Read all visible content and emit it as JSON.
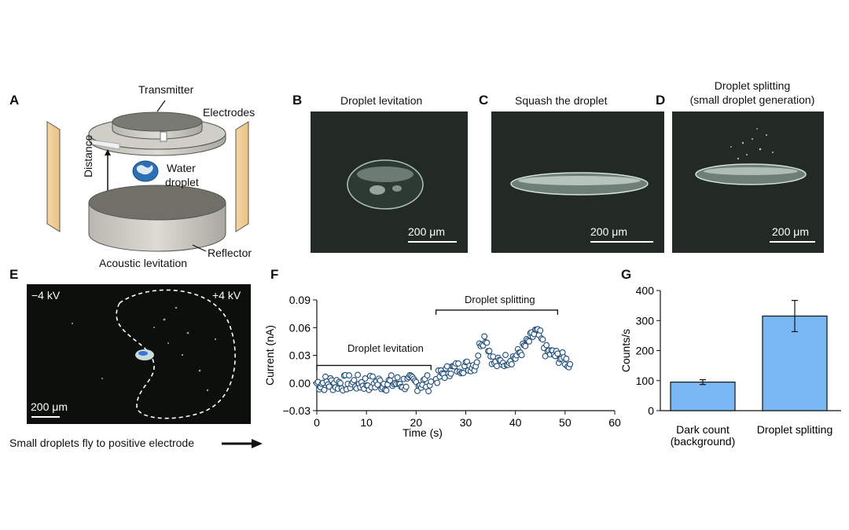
{
  "panels": {
    "a": {
      "letter": "A",
      "transmitter": "Transmitter",
      "electrodes": "Electrodes",
      "distance": "Distance",
      "water_line1": "Water",
      "water_line2": "droplet",
      "reflector": "Reflector",
      "acoustic": "Acoustic levitation"
    },
    "b": {
      "letter": "B",
      "title": "Droplet levitation",
      "scale": "200 μm"
    },
    "c": {
      "letter": "C",
      "title": "Squash the droplet",
      "scale": "200 μm"
    },
    "d": {
      "letter": "D",
      "title_line1": "Droplet splitting",
      "title_line2": "(small droplet generation)",
      "scale": "200 μm"
    },
    "e": {
      "letter": "E",
      "neg": "−4 kV",
      "pos": "+4 kV",
      "scale": "200 μm",
      "caption": "Small droplets fly to positive electrode"
    },
    "f": {
      "letter": "F",
      "annot_levitation": "Droplet levitation",
      "annot_splitting": "Droplet splitting"
    },
    "g": {
      "letter": "G"
    }
  },
  "chart_data": [
    {
      "type": "scatter",
      "panel": "F",
      "xlabel": "Time (s)",
      "ylabel": "Current (nA)",
      "xlim": [
        0,
        60
      ],
      "ylim": [
        -0.03,
        0.09
      ],
      "xticks": [
        0,
        10,
        20,
        30,
        40,
        50,
        60
      ],
      "yticks": [
        -0.03,
        0.0,
        0.03,
        0.06,
        0.09
      ],
      "ytick_labels": [
        "−0.03",
        "0.00",
        "0.03",
        "0.06",
        "0.09"
      ],
      "segments": [
        {
          "name": "Droplet levitation",
          "x_start": 0,
          "x_end": 23,
          "mean": 0.0
        },
        {
          "name": "Droplet splitting",
          "x_start": 24,
          "x_end": 51,
          "trend": [
            [
              24,
              0.005
            ],
            [
              27,
              0.015
            ],
            [
              30,
              0.018
            ],
            [
              32,
              0.02
            ],
            [
              33,
              0.045
            ],
            [
              34,
              0.05
            ],
            [
              35,
              0.03
            ],
            [
              36,
              0.02
            ],
            [
              38,
              0.025
            ],
            [
              40,
              0.028
            ],
            [
              42,
              0.04
            ],
            [
              44,
              0.055
            ],
            [
              45,
              0.05
            ],
            [
              46,
              0.035
            ],
            [
              48,
              0.03
            ],
            [
              50,
              0.025
            ],
            [
              51,
              0.02
            ]
          ]
        }
      ]
    },
    {
      "type": "bar",
      "panel": "G",
      "categories": [
        "Dark count (background)",
        "Droplet splitting"
      ],
      "category_lines": [
        [
          "Dark count",
          "(background)"
        ],
        [
          "Droplet splitting"
        ]
      ],
      "values": [
        95,
        315
      ],
      "errors": [
        8,
        52
      ],
      "ylabel": "Counts/s",
      "ylim": [
        0,
        400
      ],
      "yticks": [
        0,
        100,
        200,
        300,
        400
      ],
      "bar_color": "#7ab8f5"
    }
  ]
}
